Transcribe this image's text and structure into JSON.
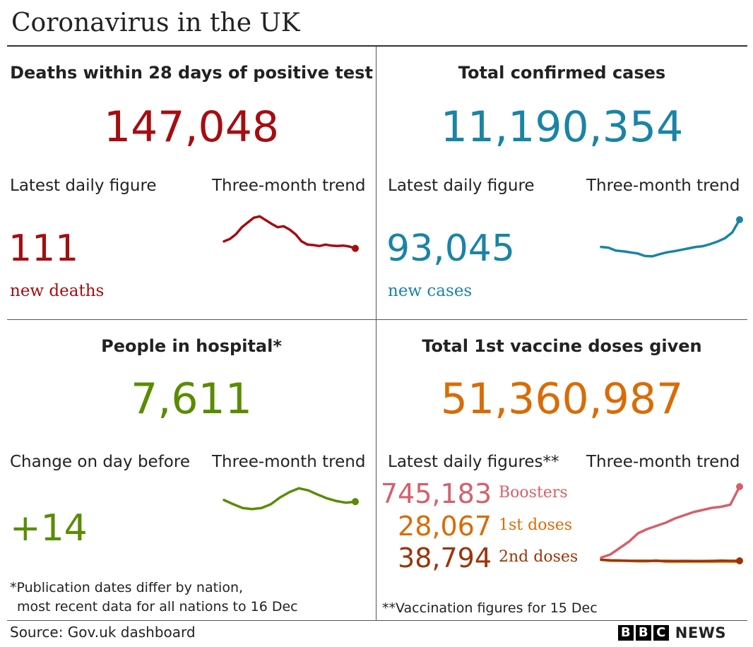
{
  "title": "Coronavirus in the UK",
  "colors": {
    "deaths": "#a50d10",
    "cases": "#1a84a6",
    "hospital": "#5a8c00",
    "vaccine": "#d96c06",
    "boosters": "#d4606b",
    "first": "#e6951a",
    "second": "#9c3408"
  },
  "deaths": {
    "heading": "Deaths within 28 days of positive test",
    "total": "147,048",
    "latest_label": "Latest daily figure",
    "trend_label": "Three-month trend",
    "latest_value": "111",
    "latest_sub": "new deaths"
  },
  "cases": {
    "heading": "Total confirmed cases",
    "total": "11,190,354",
    "latest_label": "Latest daily figure",
    "trend_label": "Three-month trend",
    "latest_value": "93,045",
    "latest_sub": "new cases"
  },
  "hospital": {
    "heading": "People in hospital*",
    "total": "7,611",
    "latest_label": "Change on day before",
    "trend_label": "Three-month trend",
    "latest_value": "+14",
    "note_line1": "*Publication dates differ by nation,",
    "note_line2": "most recent data for all nations to 16 Dec"
  },
  "vaccine": {
    "heading": "Total 1st vaccine doses given",
    "total": "51,360,987",
    "latest_label": "Latest daily figures**",
    "trend_label": "Three-month trend",
    "boosters_value": "745,183",
    "boosters_label": "Boosters",
    "first_value": "28,067",
    "first_label": "1st doses",
    "second_value": "38,794",
    "second_label": "2nd doses",
    "note": "**Vaccination figures for 15 Dec"
  },
  "chart_data": [
    {
      "type": "line",
      "name": "deaths-trend",
      "values": [
        95,
        100,
        110,
        125,
        135,
        145,
        148,
        140,
        132,
        125,
        127,
        120,
        110,
        95,
        88,
        87,
        85,
        88,
        86,
        85,
        86,
        84,
        80
      ]
    },
    {
      "type": "line",
      "name": "cases-trend",
      "values": [
        70,
        68,
        60,
        58,
        55,
        52,
        45,
        44,
        50,
        55,
        58,
        62,
        66,
        70,
        72,
        78,
        85,
        94,
        110,
        145
      ]
    },
    {
      "type": "line",
      "name": "hospital-trend",
      "values": [
        60,
        52,
        45,
        43,
        45,
        52,
        65,
        75,
        82,
        78,
        70,
        63,
        58,
        55,
        57
      ]
    },
    {
      "type": "line",
      "name": "vaccine-trend",
      "series": [
        {
          "name": "Boosters",
          "values": [
            5,
            8,
            14,
            20,
            28,
            32,
            35,
            38,
            42,
            45,
            48,
            50,
            52,
            53,
            55,
            72
          ]
        },
        {
          "name": "1st doses",
          "values": [
            3,
            2,
            2,
            2,
            1.5,
            1.5,
            2.5,
            1,
            1,
            1.2,
            1,
            1.1,
            1,
            1.2,
            1.1,
            1
          ]
        },
        {
          "name": "2nd doses",
          "values": [
            3,
            2.5,
            2.3,
            2,
            2,
            2,
            1.9,
            1.9,
            1.8,
            1.9,
            1.8,
            1.8,
            1.9,
            2.1,
            2,
            2
          ]
        }
      ]
    }
  ],
  "footer": {
    "source": "Source: Gov.uk dashboard",
    "brand_letters": [
      "B",
      "B",
      "C"
    ],
    "brand_news": "NEWS"
  }
}
